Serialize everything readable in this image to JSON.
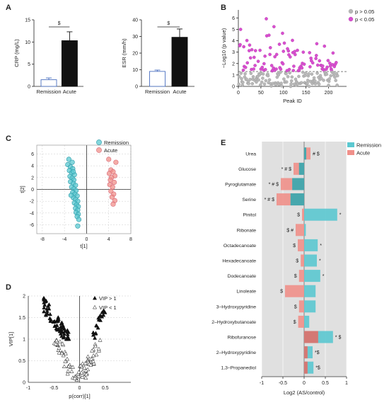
{
  "panels": {
    "A": {
      "letter": "A"
    },
    "B": {
      "letter": "B"
    },
    "C": {
      "letter": "C"
    },
    "D": {
      "letter": "D"
    },
    "E": {
      "letter": "E"
    }
  },
  "colors": {
    "remission": "#5bc8d0",
    "remission_dark": "#2a8f96",
    "acute": "#f0908a",
    "acute_dark": "#c9605c",
    "grey_dot": "#b8b8b8",
    "pink_dot": "#d94fd0",
    "bar_bg": "#e0e0e0",
    "bar_black": "#111111",
    "bar_open": "#4a6fc0"
  },
  "chart_data": [
    {
      "id": "A1",
      "type": "bar",
      "ylabel": "CRP (mg/L)",
      "ylim": [
        0,
        15
      ],
      "yticks": [
        0,
        5,
        10,
        15
      ],
      "categories": [
        "Remission",
        "Acute"
      ],
      "values": [
        1.5,
        10.3
      ],
      "errors": [
        0.4,
        2.0
      ],
      "sig_marker": "$"
    },
    {
      "id": "A2",
      "type": "bar",
      "ylabel": "ESR (mm/h)",
      "ylim": [
        0,
        40
      ],
      "yticks": [
        0,
        10,
        20,
        30,
        40
      ],
      "categories": [
        "Remission",
        "Acute"
      ],
      "values": [
        9,
        29.5
      ],
      "errors": [
        0.8,
        5
      ],
      "sig_marker": "$"
    },
    {
      "id": "B",
      "type": "scatter",
      "xlabel": "Peak ID",
      "ylabel": "−Log10 (p value)",
      "xlim": [
        0,
        240
      ],
      "ylim": [
        0,
        6.7
      ],
      "xticks": [
        0,
        50,
        100,
        150,
        200
      ],
      "yticks": [
        0,
        1,
        2,
        3,
        4,
        5,
        6
      ],
      "threshold": 1.3,
      "legend": {
        "above": "p > 0.05",
        "below": "p < 0.05",
        "position": "top-right"
      },
      "n_points": 220
    },
    {
      "id": "C",
      "type": "scatter",
      "xlabel": "t[1]",
      "ylabel": "t[2]",
      "xlim": [
        -9,
        8
      ],
      "ylim": [
        -7.5,
        7.5
      ],
      "xticks": [
        -8,
        -4,
        0,
        4,
        8
      ],
      "yticks": [
        -6,
        -4,
        -2,
        0,
        2,
        4,
        6
      ],
      "legend": {
        "position": "top-right"
      },
      "series": [
        {
          "name": "Remission",
          "points": [
            [
              -3.2,
              5.1
            ],
            [
              -2.6,
              4.6
            ],
            [
              -3.4,
              4.2
            ],
            [
              -2.9,
              3.8
            ],
            [
              -2.5,
              3.5
            ],
            [
              -3.1,
              3.2
            ],
            [
              -2.7,
              2.8
            ],
            [
              -2.2,
              2.5
            ],
            [
              -3.0,
              2.2
            ],
            [
              -2.6,
              1.9
            ],
            [
              -2.3,
              1.6
            ],
            [
              -2.9,
              1.3
            ],
            [
              -2.4,
              1.0
            ],
            [
              -2.0,
              0.7
            ],
            [
              -2.7,
              0.4
            ],
            [
              -2.3,
              0.1
            ],
            [
              -1.9,
              -0.2
            ],
            [
              -2.5,
              -0.5
            ],
            [
              -2.1,
              -0.8
            ],
            [
              -1.7,
              -1.1
            ],
            [
              -2.4,
              -1.4
            ],
            [
              -2.0,
              -1.7
            ],
            [
              -1.6,
              -2.0
            ],
            [
              -2.2,
              -2.3
            ],
            [
              -1.8,
              -2.6
            ],
            [
              -1.5,
              -2.9
            ],
            [
              -2.0,
              -3.2
            ],
            [
              -1.6,
              -3.5
            ],
            [
              -1.9,
              -3.9
            ],
            [
              -1.5,
              -4.2
            ],
            [
              -1.7,
              -4.6
            ],
            [
              -1.4,
              -5.1
            ],
            [
              -1.6,
              -6.2
            ],
            [
              -2.8,
              -1.0
            ],
            [
              -2.4,
              3.0
            ]
          ]
        },
        {
          "name": "Acute",
          "points": [
            [
              4.0,
              5.1
            ],
            [
              5.3,
              4.6
            ],
            [
              4.4,
              3.3
            ],
            [
              4.8,
              3.0
            ],
            [
              4.1,
              2.7
            ],
            [
              5.1,
              2.3
            ],
            [
              4.5,
              2.0
            ],
            [
              4.3,
              1.6
            ],
            [
              5.0,
              1.2
            ],
            [
              4.2,
              0.8
            ],
            [
              4.7,
              0.4
            ],
            [
              4.4,
              -0.3
            ],
            [
              4.9,
              -0.8
            ],
            [
              4.6,
              -1.3
            ],
            [
              5.1,
              -1.9
            ],
            [
              4.8,
              -2.5
            ]
          ]
        }
      ]
    },
    {
      "id": "D",
      "type": "scatter",
      "xlabel": "p(corr)[1]",
      "ylabel": "VIP[1]",
      "xlim": [
        -1.0,
        1.0
      ],
      "ylim": [
        0,
        2.0
      ],
      "xticks": [
        -1.0,
        -0.5,
        0.0,
        0.5
      ],
      "yticks": [
        0.0,
        0.5,
        1.0,
        1.5,
        2.0
      ],
      "series": [
        {
          "name": "VIP > 1",
          "marker": "filled-triangle",
          "n_points": 90
        },
        {
          "name": "VIP < 1",
          "marker": "open-triangle",
          "n_points": 80
        }
      ]
    },
    {
      "id": "E",
      "type": "bar",
      "orientation": "horizontal",
      "xlabel": "Log2 (AS/control)",
      "xlim": [
        -1.0,
        1.0
      ],
      "xticks": [
        -1.0,
        -0.5,
        0.0,
        0.5,
        1.0
      ],
      "legend": {
        "position": "top-right"
      },
      "categories": [
        "Urea",
        "Glucose",
        "Pyroglutamate",
        "Serine",
        "Pinitol",
        "Ribonate",
        "Octadecanoate",
        "Hexadecanoate",
        "Dodecanoate",
        "Linoleate",
        "3–Hydroxypyridine",
        "2–Hydroxybutanoate",
        "Ribofuranose",
        "2–Hydroxypyridine",
        "1,3–Propanediol"
      ],
      "series": [
        {
          "name": "Remission",
          "values": [
            0.05,
            -0.12,
            -0.28,
            -0.32,
            0.78,
            0.04,
            0.32,
            0.3,
            0.38,
            0.27,
            0.27,
            0.12,
            0.68,
            0.2,
            0.22
          ]
        },
        {
          "name": "Acute",
          "values": [
            0.15,
            -0.25,
            -0.55,
            -0.65,
            -0.05,
            -0.2,
            -0.15,
            -0.08,
            -0.12,
            -0.45,
            -0.12,
            -0.14,
            0.33,
            0.08,
            0.08
          ]
        }
      ],
      "annotations_left": [
        "",
        "* # $",
        "* # $",
        "* # $",
        "$",
        "$ #",
        "$",
        "$",
        "$",
        "$",
        "$",
        "$",
        "",
        "",
        ""
      ],
      "annotations_right": [
        "# $",
        "",
        "",
        "",
        "*",
        "",
        "*",
        "*",
        "*",
        "",
        "",
        "",
        "* $",
        "*$",
        "*$"
      ]
    }
  ]
}
